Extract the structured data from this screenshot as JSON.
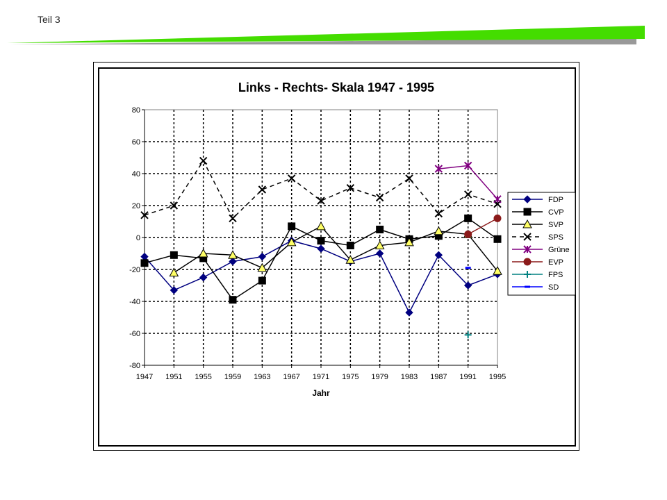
{
  "page_label": "Teil 3",
  "colors": {
    "header_green": "#44dd00",
    "header_shadow": "#999999"
  },
  "chart_data": {
    "type": "line",
    "title": "Links - Rechts- Skala 1947 - 1995",
    "xlabel": "Jahr",
    "ylabel": "",
    "categories": [
      "1947",
      "1951",
      "1955",
      "1959",
      "1963",
      "1967",
      "1971",
      "1975",
      "1979",
      "1983",
      "1987",
      "1991",
      "1995"
    ],
    "ylim": [
      -80,
      80
    ],
    "yticks": [
      80,
      60,
      40,
      20,
      0,
      -20,
      -40,
      -60,
      -80
    ],
    "grid": true,
    "legend_position": "right",
    "series": [
      {
        "name": "FDP",
        "color": "#000080",
        "marker": "diamond",
        "dash": "",
        "values": [
          -12,
          -33,
          -25,
          -15,
          -12,
          -2,
          -7,
          -15,
          -10,
          -47,
          -11,
          -30,
          -23
        ]
      },
      {
        "name": "CVP",
        "color": "#000000",
        "marker": "square",
        "dash": "",
        "values": [
          -16,
          -11,
          -13,
          -39,
          -27,
          7,
          -2,
          -5,
          5,
          -1,
          1,
          12,
          -1
        ]
      },
      {
        "name": "SVP",
        "color": "#000000",
        "marker": "triangle",
        "dash": "",
        "values": [
          null,
          -22,
          -10,
          -11,
          -19,
          -3,
          7,
          -14,
          -5,
          -3,
          4,
          2,
          -21
        ]
      },
      {
        "name": "SPS",
        "color": "#000000",
        "marker": "x",
        "dash": "6,5",
        "values": [
          14,
          20,
          48,
          12,
          30,
          37,
          23,
          31,
          25,
          37,
          15,
          27,
          21
        ]
      },
      {
        "name": "Grüne",
        "color": "#800080",
        "marker": "asterisk",
        "dash": "",
        "values": [
          null,
          null,
          null,
          null,
          null,
          null,
          null,
          null,
          null,
          null,
          43,
          45,
          24
        ]
      },
      {
        "name": "EVP",
        "color": "#8b1a1a",
        "marker": "circle",
        "dash": "",
        "values": [
          null,
          null,
          null,
          null,
          null,
          null,
          null,
          null,
          null,
          null,
          null,
          2,
          12
        ]
      },
      {
        "name": "FPS",
        "color": "#008080",
        "marker": "plus",
        "dash": "",
        "values": [
          null,
          null,
          null,
          null,
          null,
          null,
          null,
          null,
          null,
          null,
          null,
          -61,
          null
        ]
      },
      {
        "name": "SD",
        "color": "#0000ff",
        "marker": "dash",
        "dash": "",
        "values": [
          null,
          null,
          null,
          null,
          null,
          null,
          null,
          null,
          null,
          null,
          null,
          -19,
          null
        ]
      }
    ]
  }
}
